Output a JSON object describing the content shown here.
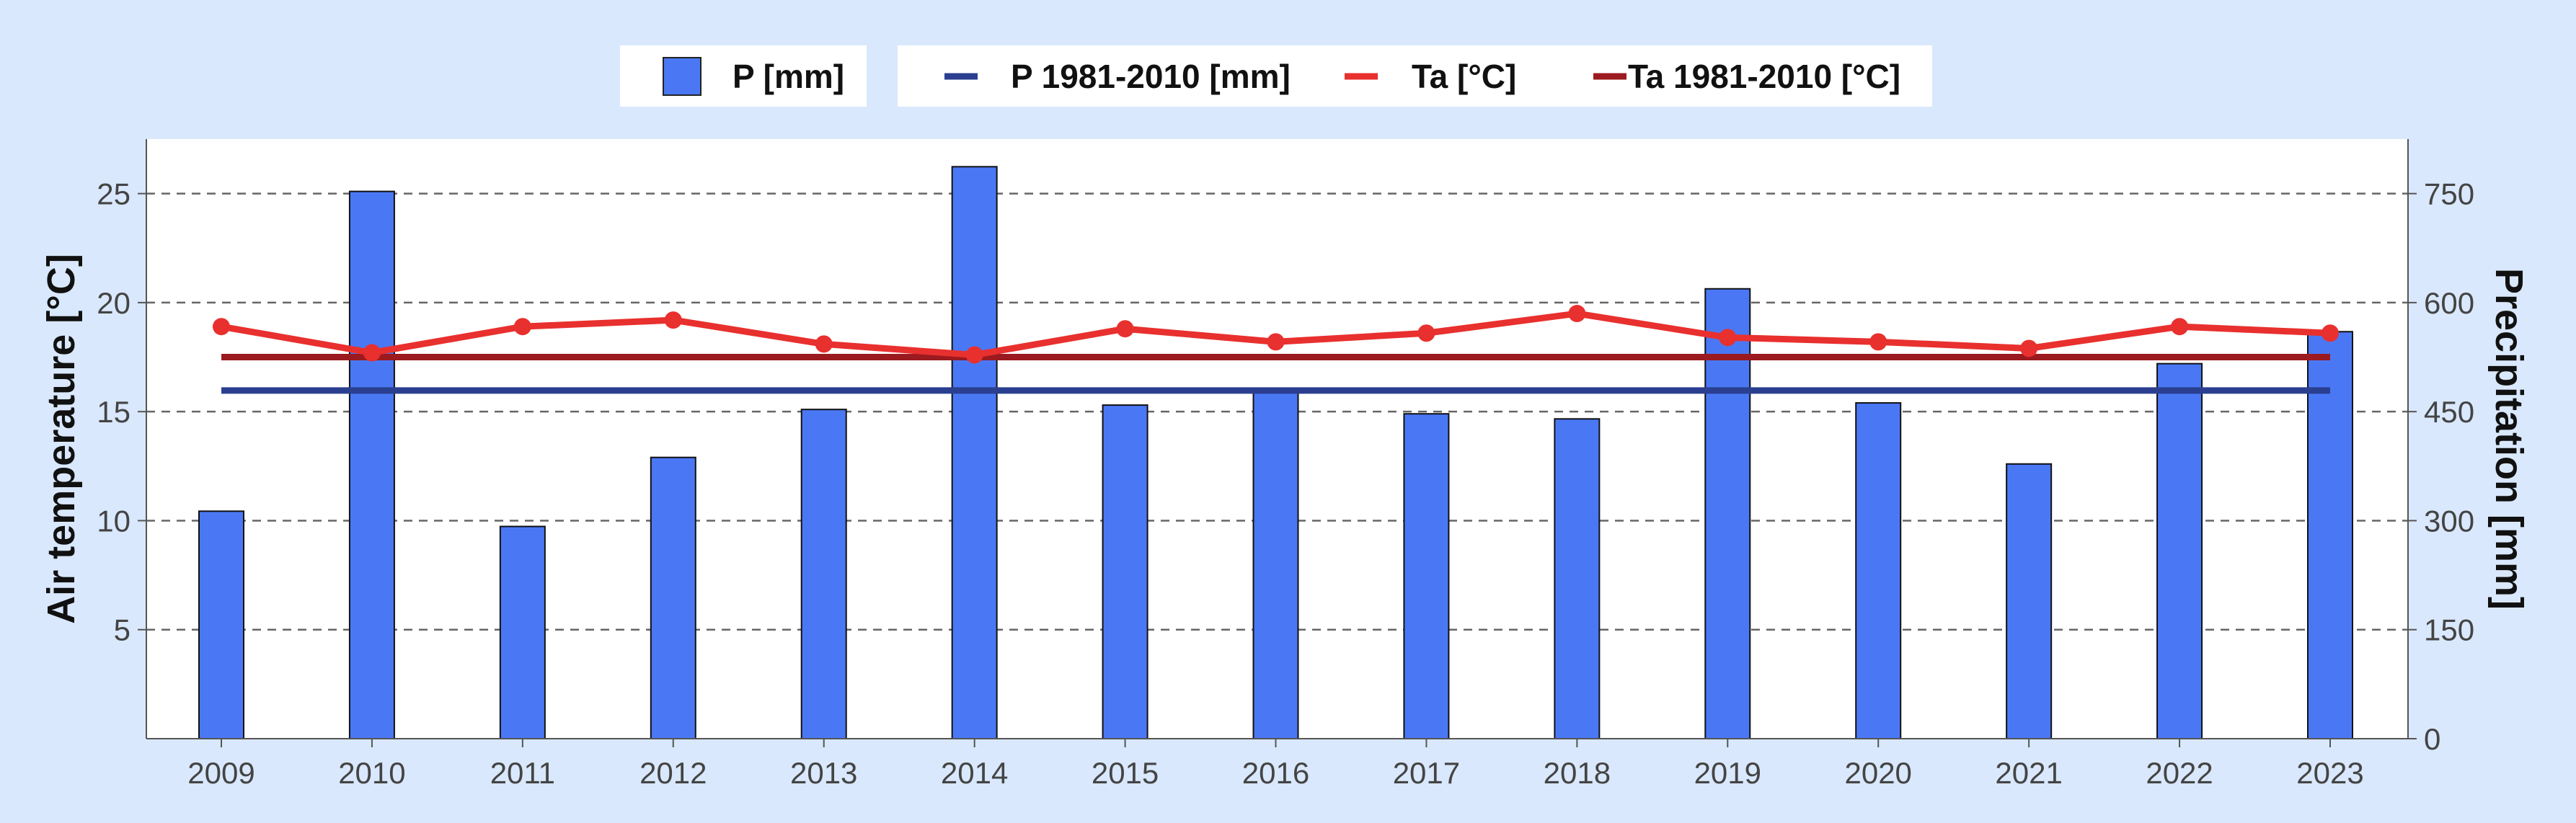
{
  "chart_data": {
    "type": "bar",
    "title": "",
    "categories": [
      "2009",
      "2010",
      "2011",
      "2012",
      "2013",
      "2014",
      "2015",
      "2016",
      "2017",
      "2018",
      "2019",
      "2020",
      "2021",
      "2022",
      "2023"
    ],
    "y_left": {
      "label": "Air temperature [°C]",
      "range": [
        0,
        27.5
      ],
      "ticks": [
        5,
        10,
        15,
        20,
        25
      ]
    },
    "y_right": {
      "label": "Precipitation [mm]",
      "range": [
        0,
        825
      ],
      "ticks": [
        0,
        150,
        300,
        450,
        600,
        750
      ]
    },
    "grid": "horizontal dashed",
    "legend_position": "top",
    "series": [
      {
        "name": "P [mm]",
        "type": "bar",
        "axis": "right",
        "color": "#4a78f5",
        "values": [
          313,
          753,
          292,
          387,
          453,
          787,
          459,
          479,
          447,
          440,
          619,
          462,
          378,
          516,
          560
        ]
      },
      {
        "name": "P 1981-2010 [mm]",
        "type": "line",
        "axis": "right",
        "color": "#2a3f8f",
        "values": [
          479,
          479,
          479,
          479,
          479,
          479,
          479,
          479,
          479,
          479,
          479,
          479,
          479,
          479,
          479
        ]
      },
      {
        "name": "Ta [°C]",
        "type": "line",
        "axis": "left",
        "color": "#e8302e",
        "markers": true,
        "values": [
          18.9,
          17.7,
          18.9,
          19.2,
          18.1,
          17.6,
          18.8,
          18.2,
          18.6,
          19.5,
          18.4,
          18.2,
          17.9,
          18.9,
          18.6
        ]
      },
      {
        "name": "Ta 1981-2010 [°C]",
        "type": "line",
        "axis": "left",
        "color": "#9b1a1f",
        "values": [
          17.5,
          17.5,
          17.5,
          17.5,
          17.5,
          17.5,
          17.5,
          17.5,
          17.5,
          17.5,
          17.5,
          17.5,
          17.5,
          17.5,
          17.5
        ]
      }
    ]
  }
}
